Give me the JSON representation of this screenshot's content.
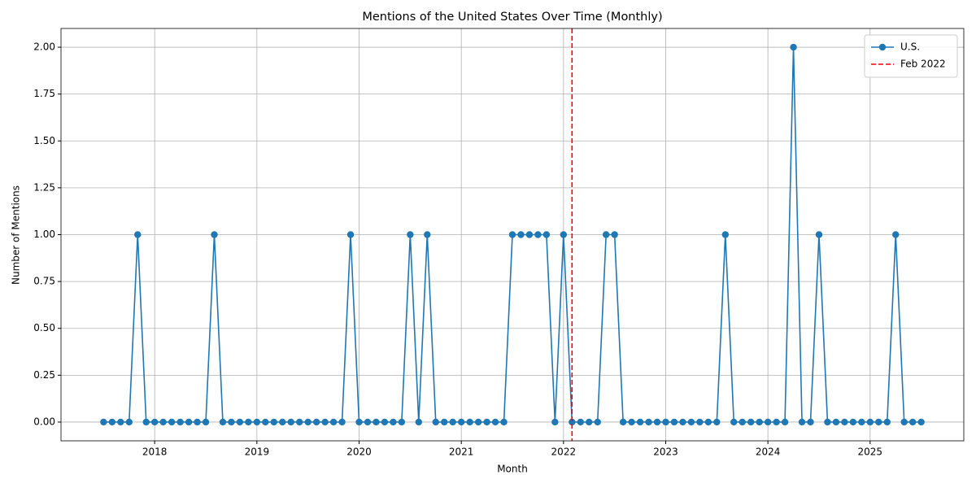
{
  "chart_data": {
    "type": "line",
    "title": "Mentions of the United States Over Time (Monthly)",
    "xlabel": "Month",
    "ylabel": "Number of Mentions",
    "x": [
      "2017-07",
      "2017-08",
      "2017-09",
      "2017-10",
      "2017-11",
      "2017-12",
      "2018-01",
      "2018-02",
      "2018-03",
      "2018-04",
      "2018-05",
      "2018-06",
      "2018-07",
      "2018-08",
      "2018-09",
      "2018-10",
      "2018-11",
      "2018-12",
      "2019-01",
      "2019-02",
      "2019-03",
      "2019-04",
      "2019-05",
      "2019-06",
      "2019-07",
      "2019-08",
      "2019-09",
      "2019-10",
      "2019-11",
      "2019-12",
      "2020-01",
      "2020-02",
      "2020-03",
      "2020-04",
      "2020-05",
      "2020-06",
      "2020-07",
      "2020-08",
      "2020-09",
      "2020-10",
      "2020-11",
      "2020-12",
      "2021-01",
      "2021-02",
      "2021-03",
      "2021-04",
      "2021-05",
      "2021-06",
      "2021-07",
      "2021-08",
      "2021-09",
      "2021-10",
      "2021-11",
      "2021-12",
      "2022-01",
      "2022-02",
      "2022-03",
      "2022-04",
      "2022-05",
      "2022-06",
      "2022-07",
      "2022-08",
      "2022-09",
      "2022-10",
      "2022-11",
      "2022-12",
      "2023-01",
      "2023-02",
      "2023-03",
      "2023-04",
      "2023-05",
      "2023-06",
      "2023-07",
      "2023-08",
      "2023-09",
      "2023-10",
      "2023-11",
      "2023-12",
      "2024-01",
      "2024-02",
      "2024-03",
      "2024-04",
      "2024-05",
      "2024-06",
      "2024-07",
      "2024-08",
      "2024-09",
      "2024-10",
      "2024-11",
      "2024-12",
      "2025-01",
      "2025-02",
      "2025-03",
      "2025-04",
      "2025-05",
      "2025-06",
      "2025-07"
    ],
    "series": [
      {
        "name": "U.S.",
        "color": "#1f77b4",
        "values": [
          0,
          0,
          0,
          0,
          1,
          0,
          0,
          0,
          0,
          0,
          0,
          0,
          0,
          1,
          0,
          0,
          0,
          0,
          0,
          0,
          0,
          0,
          0,
          0,
          0,
          0,
          0,
          0,
          0,
          1,
          0,
          0,
          0,
          0,
          0,
          0,
          1,
          0,
          1,
          0,
          0,
          0,
          0,
          0,
          0,
          0,
          0,
          0,
          1,
          1,
          1,
          1,
          1,
          0,
          1,
          0,
          0,
          0,
          0,
          1,
          1,
          0,
          0,
          0,
          0,
          0,
          0,
          0,
          0,
          0,
          0,
          0,
          0,
          1,
          0,
          0,
          0,
          0,
          0,
          0,
          0,
          2,
          0,
          0,
          1,
          0,
          0,
          0,
          0,
          0,
          0,
          0,
          0,
          1,
          0,
          0,
          0
        ]
      }
    ],
    "vline": {
      "x": "2022-02",
      "label": "Feb 2022",
      "color": "#ff0000"
    },
    "xlim": [
      "2017-02",
      "2025-12"
    ],
    "xticks": [
      {
        "value": "2018-01",
        "label": "2018"
      },
      {
        "value": "2019-01",
        "label": "2019"
      },
      {
        "value": "2020-01",
        "label": "2020"
      },
      {
        "value": "2021-01",
        "label": "2021"
      },
      {
        "value": "2022-01",
        "label": "2022"
      },
      {
        "value": "2023-01",
        "label": "2023"
      },
      {
        "value": "2024-01",
        "label": "2024"
      },
      {
        "value": "2025-01",
        "label": "2025"
      }
    ],
    "ylim": [
      -0.1,
      2.1
    ],
    "yticks": [
      {
        "value": 0,
        "label": "0.00"
      },
      {
        "value": 0.25,
        "label": "0.25"
      },
      {
        "value": 0.5,
        "label": "0.50"
      },
      {
        "value": 0.75,
        "label": "0.75"
      },
      {
        "value": 1,
        "label": "1.00"
      },
      {
        "value": 1.25,
        "label": "1.25"
      },
      {
        "value": 1.5,
        "label": "1.50"
      },
      {
        "value": 1.75,
        "label": "1.75"
      },
      {
        "value": 2,
        "label": "2.00"
      }
    ],
    "grid": true,
    "legend": "upper right"
  }
}
